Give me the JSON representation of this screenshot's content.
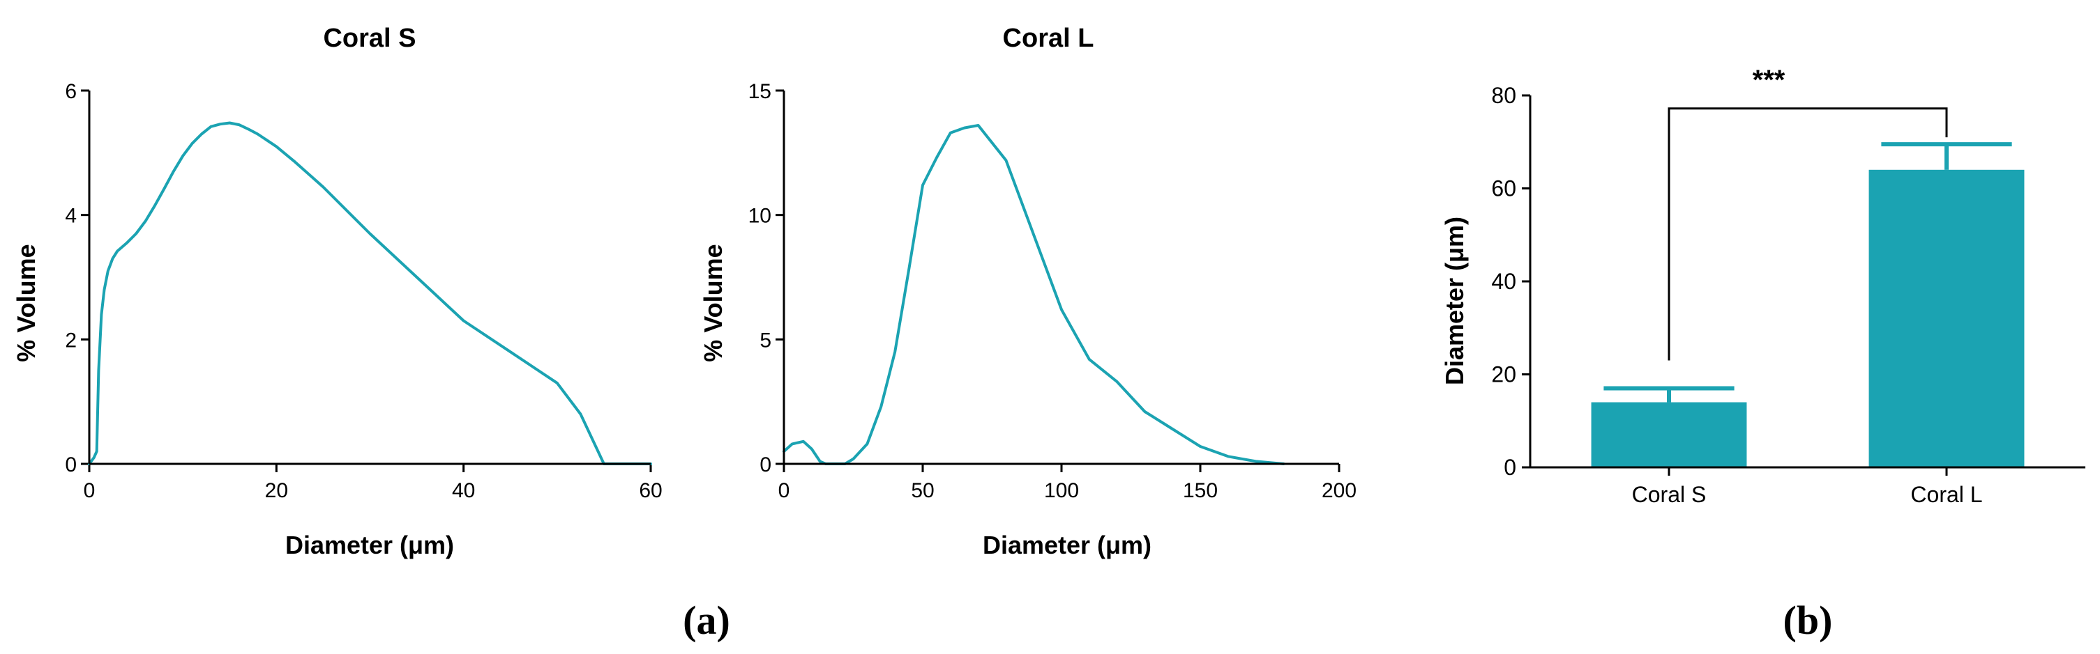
{
  "colors": {
    "accent": "#1BA3B2",
    "axis": "#000000"
  },
  "panel_labels": {
    "a": "(a)",
    "b": "(b)"
  },
  "chart_data": [
    {
      "type": "line",
      "title": "Coral S",
      "xlabel": "Diameter (μm)",
      "ylabel": "% Volume",
      "xlim": [
        0,
        60
      ],
      "ylim": [
        0,
        6
      ],
      "xticks": [
        0,
        20,
        40,
        60
      ],
      "yticks": [
        0,
        2,
        4,
        6
      ],
      "series": [
        {
          "name": "Coral S",
          "x": [
            0,
            0.5,
            0.8,
            1.0,
            1.3,
            1.6,
            2.0,
            2.5,
            3,
            4,
            5,
            6,
            7,
            8,
            9,
            10,
            11,
            12,
            13,
            14,
            15,
            16,
            17,
            18,
            20,
            22,
            25,
            30,
            35,
            40,
            45,
            50,
            52.5,
            55,
            60
          ],
          "y": [
            0,
            0.1,
            0.2,
            1.5,
            2.4,
            2.8,
            3.1,
            3.3,
            3.42,
            3.55,
            3.7,
            3.9,
            4.15,
            4.42,
            4.7,
            4.95,
            5.15,
            5.3,
            5.42,
            5.46,
            5.48,
            5.45,
            5.38,
            5.3,
            5.1,
            4.85,
            4.45,
            3.7,
            3.0,
            2.3,
            1.8,
            1.3,
            0.8,
            0,
            0
          ]
        }
      ]
    },
    {
      "type": "line",
      "title": "Coral L",
      "xlabel": "Diameter (μm)",
      "ylabel": "% Volume",
      "xlim": [
        0,
        200
      ],
      "ylim": [
        0,
        15
      ],
      "xticks": [
        0,
        50,
        100,
        150,
        200
      ],
      "yticks": [
        0,
        5,
        10,
        15
      ],
      "series": [
        {
          "name": "Coral L",
          "x": [
            0,
            3,
            7,
            10,
            13,
            15,
            22,
            25,
            30,
            35,
            40,
            45,
            50,
            55,
            60,
            65,
            70,
            80,
            90,
            100,
            110,
            120,
            130,
            140,
            150,
            160,
            170,
            180
          ],
          "y": [
            0.5,
            0.8,
            0.9,
            0.6,
            0.1,
            0,
            0,
            0.2,
            0.8,
            2.3,
            4.5,
            7.8,
            11.2,
            12.3,
            13.3,
            13.5,
            13.6,
            12.2,
            9.2,
            6.2,
            4.2,
            3.3,
            2.1,
            1.4,
            0.7,
            0.3,
            0.1,
            0
          ]
        }
      ]
    },
    {
      "type": "bar",
      "ylabel": "Diameter (μm)",
      "xlabel": "",
      "ylim": [
        0,
        80
      ],
      "yticks": [
        0,
        20,
        40,
        60,
        80
      ],
      "categories": [
        "Coral S",
        "Coral L"
      ],
      "values": [
        14,
        64
      ],
      "error": [
        3,
        5.5
      ],
      "significance": {
        "label": "***",
        "between": [
          "Coral S",
          "Coral L"
        ]
      }
    }
  ]
}
